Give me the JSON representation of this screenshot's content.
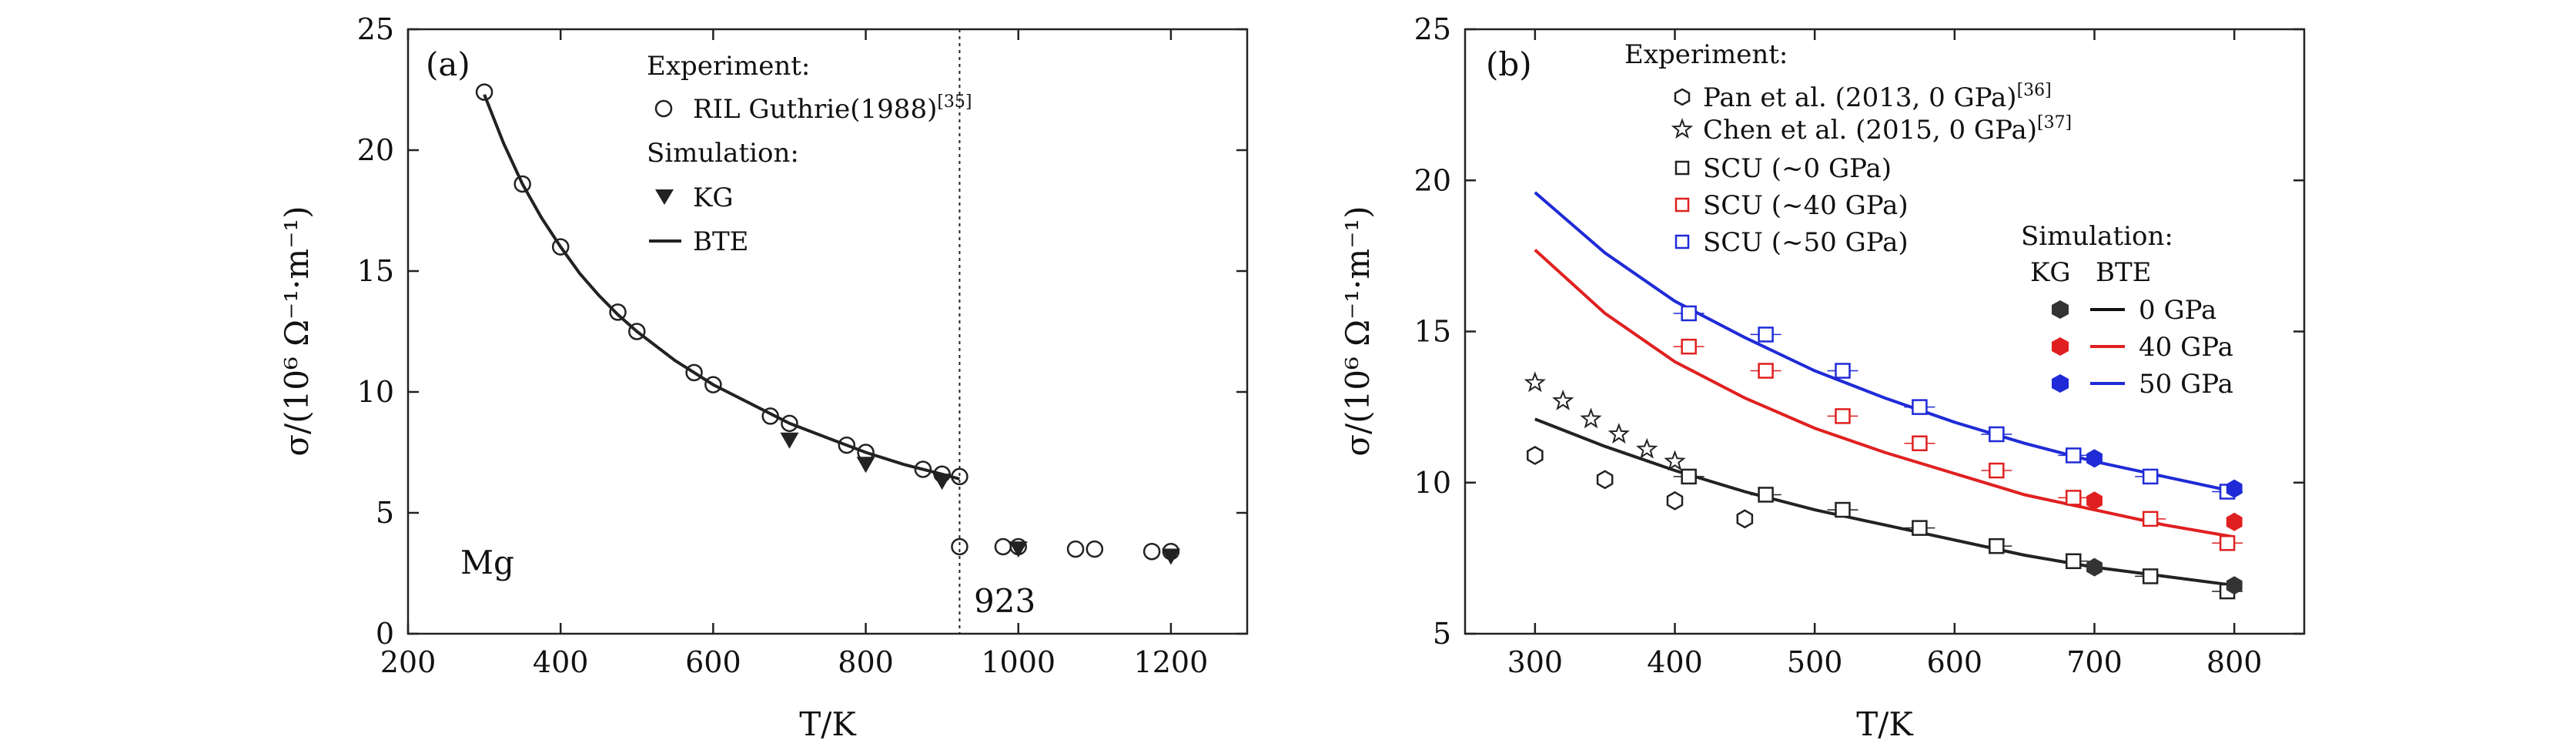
{
  "colors": {
    "black": "#222222",
    "red": "#e02020",
    "blue": "#1f2bd6"
  },
  "chart_data": [
    {
      "type": "scatter",
      "panel": "(a)",
      "xlabel": "T/K",
      "ylabel": "σ/(10⁶ Ω⁻¹·m⁻¹)",
      "xlim": [
        200,
        1300
      ],
      "ylim": [
        0,
        25
      ],
      "xticks": [
        "200",
        "400",
        "600",
        "800",
        "1000",
        "1200"
      ],
      "yticks": [
        "0",
        "5",
        "10",
        "15",
        "20",
        "25"
      ],
      "annotations": {
        "material": "Mg",
        "melting_label": "923",
        "melting_x": 923
      },
      "legend": {
        "experiment_header": "Experiment:",
        "exp_label": "RIL Guthrie(1988)",
        "exp_ref": "[35]",
        "simulation_header": "Simulation:",
        "kg_label": "KG",
        "bte_label": "BTE"
      },
      "series": [
        {
          "name": "RIL Guthrie(1988)",
          "x": [
            300,
            350,
            400,
            475,
            500,
            575,
            600,
            675,
            700,
            775,
            800,
            875,
            900,
            923,
            923,
            980,
            1000,
            1075,
            1100,
            1175,
            1200
          ],
          "y": [
            22.4,
            18.6,
            16.0,
            13.3,
            12.5,
            10.8,
            10.3,
            9.0,
            8.7,
            7.8,
            7.5,
            6.8,
            6.6,
            6.5,
            3.6,
            3.6,
            3.6,
            3.5,
            3.5,
            3.4,
            3.4
          ]
        },
        {
          "name": "KG",
          "x": [
            700,
            800,
            900,
            1000,
            1200
          ],
          "y": [
            8.0,
            7.0,
            6.3,
            3.5,
            3.2
          ]
        },
        {
          "name": "BTE",
          "x": [
            300,
            325,
            350,
            375,
            400,
            425,
            450,
            475,
            500,
            550,
            600,
            650,
            700,
            750,
            800,
            850,
            900,
            923
          ],
          "y": [
            22.3,
            20.3,
            18.6,
            17.2,
            16.0,
            14.9,
            14.0,
            13.2,
            12.5,
            11.3,
            10.3,
            9.5,
            8.7,
            8.1,
            7.5,
            7.0,
            6.6,
            6.4
          ]
        }
      ]
    },
    {
      "type": "scatter",
      "panel": "(b)",
      "xlabel": "T/K",
      "ylabel": "σ/(10⁶ Ω⁻¹·m⁻¹)",
      "xlim": [
        250,
        850
      ],
      "ylim": [
        5,
        25
      ],
      "xticks": [
        "300",
        "400",
        "500",
        "600",
        "700",
        "800"
      ],
      "yticks": [
        "5",
        "10",
        "15",
        "20",
        "25"
      ],
      "legend": {
        "experiment_header": "Experiment:",
        "pan_label": "Pan et al. (2013, 0 GPa)",
        "pan_ref": "[36]",
        "chen_label": "Chen et al. (2015, 0 GPa)",
        "chen_ref": "[37]",
        "scu0_label": "SCU (~0 GPa)",
        "scu40_label": "SCU (~40 GPa)",
        "scu50_label": "SCU (~50 GPa)",
        "simulation_header": "Simulation:",
        "kg_header": "KG",
        "bte_header": "BTE",
        "p0_label": "0 GPa",
        "p40_label": "40 GPa",
        "p50_label": "50 GPa"
      },
      "series": [
        {
          "name": "Pan et al. (2013, 0 GPa)",
          "x": [
            300,
            350,
            400,
            450
          ],
          "y": [
            10.9,
            10.1,
            9.4,
            8.8
          ]
        },
        {
          "name": "Chen et al. (2015, 0 GPa)",
          "x": [
            300,
            320,
            340,
            360,
            380,
            400
          ],
          "y": [
            13.3,
            12.7,
            12.1,
            11.6,
            11.1,
            10.7
          ]
        },
        {
          "name": "SCU (~0 GPa)",
          "x": [
            410,
            465,
            520,
            575,
            630,
            685,
            740,
            795
          ],
          "y": [
            10.2,
            9.6,
            9.1,
            8.5,
            7.9,
            7.4,
            6.9,
            6.4
          ]
        },
        {
          "name": "SCU (~40 GPa)",
          "x": [
            410,
            465,
            520,
            575,
            630,
            685,
            740,
            795
          ],
          "y": [
            14.5,
            13.7,
            12.2,
            11.3,
            10.4,
            9.5,
            8.8,
            8.0
          ]
        },
        {
          "name": "SCU (~50 GPa)",
          "x": [
            410,
            465,
            520,
            575,
            630,
            685,
            740,
            795
          ],
          "y": [
            15.6,
            14.9,
            13.7,
            12.5,
            11.6,
            10.9,
            10.2,
            9.7
          ]
        },
        {
          "name": "KG 0 GPa",
          "x": [
            700,
            800
          ],
          "y": [
            7.2,
            6.6
          ]
        },
        {
          "name": "KG 40 GPa",
          "x": [
            700,
            800
          ],
          "y": [
            9.4,
            8.7
          ]
        },
        {
          "name": "KG 50 GPa",
          "x": [
            700,
            800
          ],
          "y": [
            10.8,
            9.8
          ]
        },
        {
          "name": "BTE 0 GPa",
          "x": [
            300,
            350,
            400,
            450,
            500,
            550,
            600,
            650,
            700,
            750,
            800
          ],
          "y": [
            12.1,
            11.2,
            10.4,
            9.7,
            9.1,
            8.6,
            8.1,
            7.6,
            7.2,
            6.9,
            6.6
          ]
        },
        {
          "name": "BTE 40 GPa",
          "x": [
            300,
            350,
            400,
            450,
            500,
            550,
            600,
            650,
            700,
            750,
            800
          ],
          "y": [
            17.7,
            15.6,
            14.0,
            12.8,
            11.8,
            11.0,
            10.3,
            9.6,
            9.1,
            8.6,
            8.2
          ]
        },
        {
          "name": "BTE 50 GPa",
          "x": [
            300,
            350,
            400,
            450,
            500,
            550,
            600,
            650,
            700,
            750,
            800
          ],
          "y": [
            19.6,
            17.6,
            16.0,
            14.8,
            13.7,
            12.8,
            12.0,
            11.3,
            10.7,
            10.2,
            9.7
          ]
        }
      ]
    }
  ]
}
